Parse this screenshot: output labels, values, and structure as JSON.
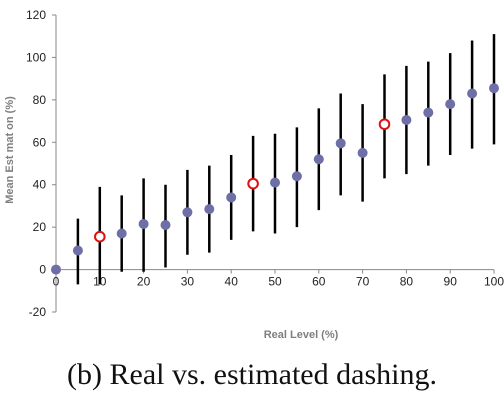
{
  "chart_data": {
    "type": "scatter",
    "xlabel": "Real Level (%)",
    "ylabel": "Mean Est mat on (%)",
    "xlim": [
      0,
      100
    ],
    "ylim": [
      -20,
      120
    ],
    "x_ticks": [
      "0",
      "10",
      "20",
      "30",
      "40",
      "50",
      "60",
      "70",
      "80",
      "90",
      "100"
    ],
    "y_ticks": [
      "-20",
      "0",
      "20",
      "40",
      "60",
      "80",
      "100",
      "120"
    ],
    "grid": false,
    "error_bars": true,
    "series": [
      {
        "marker": "filled circle",
        "color": "#6e6fa6",
        "points": [
          {
            "x": 0,
            "y": 0,
            "low": 0,
            "high": 0
          },
          {
            "x": 5,
            "y": 9,
            "low": -7,
            "high": 24
          },
          {
            "x": 15,
            "y": 17,
            "low": -1,
            "high": 35
          },
          {
            "x": 20,
            "y": 21.5,
            "low": -1,
            "high": 43
          },
          {
            "x": 25,
            "y": 21,
            "low": 1,
            "high": 40
          },
          {
            "x": 30,
            "y": 27,
            "low": 7,
            "high": 47
          },
          {
            "x": 35,
            "y": 28.5,
            "low": 8,
            "high": 49
          },
          {
            "x": 40,
            "y": 34,
            "low": 14,
            "high": 54
          },
          {
            "x": 50,
            "y": 41,
            "low": 17,
            "high": 64
          },
          {
            "x": 55,
            "y": 44,
            "low": 20,
            "high": 67
          },
          {
            "x": 60,
            "y": 52,
            "low": 28,
            "high": 76
          },
          {
            "x": 65,
            "y": 59.5,
            "low": 35,
            "high": 83
          },
          {
            "x": 70,
            "y": 55,
            "low": 32,
            "high": 78
          },
          {
            "x": 80,
            "y": 70.5,
            "low": 45,
            "high": 96
          },
          {
            "x": 85,
            "y": 74,
            "low": 49,
            "high": 98
          },
          {
            "x": 90,
            "y": 78,
            "low": 54,
            "high": 102
          },
          {
            "x": 95,
            "y": 83,
            "low": 57,
            "high": 108
          },
          {
            "x": 100,
            "y": 85.5,
            "low": 59,
            "high": 111
          }
        ]
      },
      {
        "marker": "open circle",
        "color": "#dd1111",
        "points": [
          {
            "x": 10,
            "y": 15.5,
            "low": -7,
            "high": 39
          },
          {
            "x": 45,
            "y": 40.5,
            "low": 18,
            "high": 63
          },
          {
            "x": 75,
            "y": 68.5,
            "low": 43,
            "high": 92
          }
        ]
      }
    ]
  },
  "caption": "(b) Real vs. estimated dashing."
}
